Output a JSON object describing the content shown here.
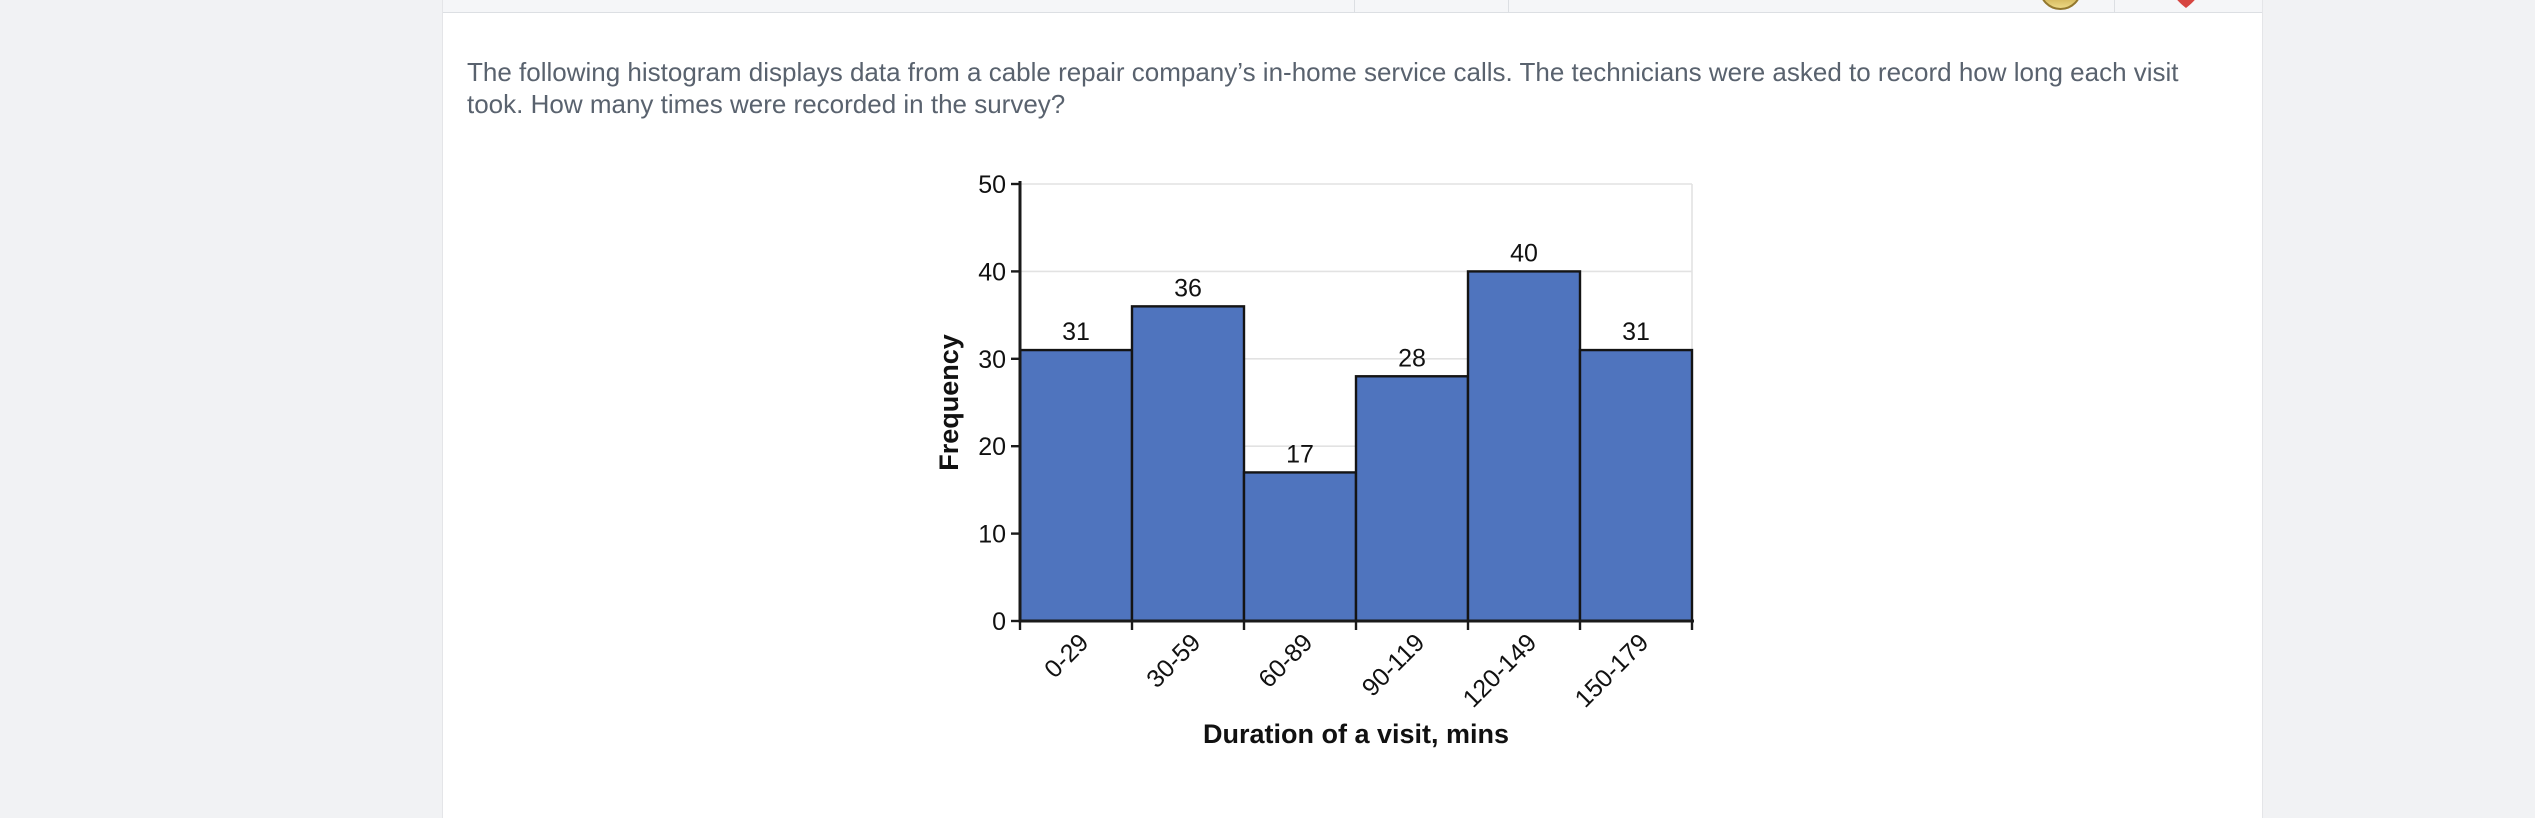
{
  "window": {
    "bg_color": "#f1f2f4",
    "panel_bg": "#ffffff"
  },
  "topbar": {
    "bg_color": "#f5f6f8",
    "border_color": "#dcdfe3",
    "coin_color": "#c9ab4e",
    "heart_color": "#d64541"
  },
  "question": {
    "text": "The following histogram displays data from a cable repair company’s in-home service calls. The technicians were asked to record how long each visit took. How many times were recorded in the survey?",
    "color": "#59626e"
  },
  "chart_data": {
    "type": "bar",
    "subtype": "histogram",
    "categories": [
      "0-29",
      "30-59",
      "60-89",
      "90-119",
      "120-149",
      "150-179"
    ],
    "values": [
      31,
      36,
      17,
      28,
      40,
      31
    ],
    "title": "",
    "xlabel": "Duration of a visit, mins",
    "ylabel": "Frequency",
    "ylim": [
      0,
      50
    ],
    "ytick_step": 10,
    "yticks": [
      0,
      10,
      20,
      30,
      40,
      50
    ],
    "grid": true,
    "show_value_labels": true,
    "legend": "none",
    "bar_color": "#4f74be",
    "bar_border_color": "#141414",
    "grid_color": "#e2e2e2",
    "axis_color": "#1a1a1a",
    "label_color": "#111111"
  }
}
